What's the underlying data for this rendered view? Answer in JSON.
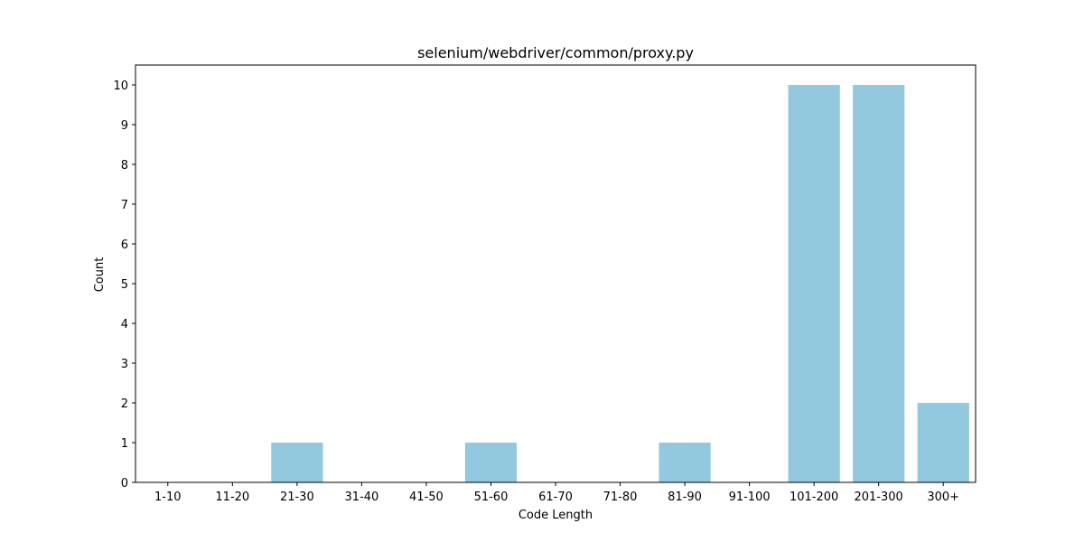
{
  "chart_data": {
    "type": "bar",
    "title": "selenium/webdriver/common/proxy.py",
    "xlabel": "Code Length",
    "ylabel": "Count",
    "categories": [
      "1-10",
      "11-20",
      "21-30",
      "31-40",
      "41-50",
      "51-60",
      "61-70",
      "71-80",
      "81-90",
      "91-100",
      "101-200",
      "201-300",
      "300+"
    ],
    "values": [
      0,
      0,
      1,
      0,
      0,
      1,
      0,
      0,
      1,
      0,
      10,
      10,
      2
    ],
    "ylim": [
      0,
      10.5
    ],
    "yticks": [
      0,
      1,
      2,
      3,
      4,
      5,
      6,
      7,
      8,
      9,
      10
    ],
    "bar_color": "#92c9df",
    "grid": false,
    "legend": "none"
  }
}
